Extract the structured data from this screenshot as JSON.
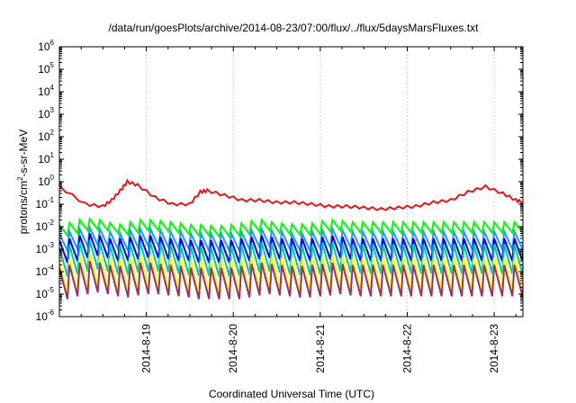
{
  "chart_data": {
    "type": "line",
    "title": "/data/run/goesPlots/archive/2014-08-23/07:00/flux/../flux/5daysMarsFluxes.txt",
    "xlabel": "Coordinated Universal Time (UTC)",
    "ylabel": {
      "base": "protons/cm",
      "exp": "2",
      "rest": "-s-sr-MeV"
    },
    "ylog": true,
    "ylim_exponents": [
      -6,
      6
    ],
    "y_ticks": [
      {
        "base": "10",
        "exp": "6"
      },
      {
        "base": "10",
        "exp": "5"
      },
      {
        "base": "10",
        "exp": "4"
      },
      {
        "base": "10",
        "exp": "3"
      },
      {
        "base": "10",
        "exp": "2"
      },
      {
        "base": "10",
        "exp": "1"
      },
      {
        "base": "10",
        "exp": "0"
      },
      {
        "base": "10",
        "exp": "-1"
      },
      {
        "base": "10",
        "exp": "-2"
      },
      {
        "base": "10",
        "exp": "-3"
      },
      {
        "base": "10",
        "exp": "-4"
      },
      {
        "base": "10",
        "exp": "-5"
      },
      {
        "base": "10",
        "exp": "-6"
      }
    ],
    "x_range_days": [
      "2014-08-18",
      "2014-08-23"
    ],
    "x_ticks": [
      "2014-8-19",
      "2014-8-20",
      "2014-8-21",
      "2014-8-22",
      "2014-8-23"
    ],
    "grid": "x-only",
    "series": [
      {
        "color": "#e41a1c",
        "x": [
          18.0,
          18.3,
          18.5,
          18.6,
          18.7,
          18.78,
          18.9,
          19.1,
          19.3,
          19.5,
          19.62,
          19.7,
          19.9,
          20.1,
          20.3,
          20.5,
          20.7,
          20.9,
          21.1,
          21.3,
          21.5,
          21.7,
          21.9,
          22.1,
          22.3,
          22.5,
          22.7,
          22.9,
          23.1,
          23.25,
          23.33
        ],
        "values": [
          0.6,
          0.1,
          0.08,
          0.15,
          0.4,
          1.0,
          0.7,
          0.2,
          0.1,
          0.1,
          0.35,
          0.4,
          0.25,
          0.15,
          0.15,
          0.12,
          0.12,
          0.1,
          0.08,
          0.08,
          0.07,
          0.06,
          0.07,
          0.08,
          0.12,
          0.15,
          0.35,
          0.6,
          0.3,
          0.15,
          0.12
        ]
      },
      {
        "color": "#00ff00",
        "level": [
          0.012,
          0.015,
          0.02,
          0.022,
          0.02,
          0.015,
          0.013,
          0.016,
          0.02,
          0.02,
          0.018,
          0.016,
          0.014,
          0.012,
          0.012,
          0.011,
          0.011,
          0.012,
          0.014,
          0.018,
          0.02,
          0.016,
          0.014,
          0.013,
          0.013,
          0.014,
          0.018,
          0.02,
          0.018,
          0.016,
          0.016,
          0.016,
          0.016,
          0.016,
          0.016,
          0.016,
          0.016,
          0.016,
          0.016,
          0.016,
          0.016,
          0.016,
          0.016,
          0.016,
          0.016,
          0.016,
          0.016,
          0.016,
          0.016,
          0.016,
          0.016,
          0.016,
          0.016,
          0.016,
          0.016,
          0.016,
          0.016,
          0.016,
          0.016,
          0.016,
          0.016
        ],
        "drop": 3
      },
      {
        "color": "#1a9bff",
        "level": [
          0.005,
          0.006,
          0.008,
          0.009,
          0.008,
          0.006,
          0.005,
          0.007,
          0.008,
          0.008,
          0.007,
          0.006,
          0.006,
          0.005,
          0.005,
          0.005,
          0.005,
          0.005,
          0.006,
          0.007,
          0.008,
          0.007,
          0.006,
          0.005,
          0.005,
          0.006,
          0.007,
          0.008,
          0.007,
          0.006,
          0.006,
          0.006,
          0.006,
          0.006,
          0.006,
          0.006,
          0.006,
          0.006,
          0.006,
          0.006,
          0.006,
          0.006,
          0.006,
          0.006,
          0.006,
          0.006,
          0.006,
          0.006,
          0.006,
          0.006,
          0.006,
          0.006,
          0.006,
          0.006,
          0.006,
          0.006,
          0.006,
          0.006,
          0.006,
          0.006,
          0.006
        ],
        "drop": 6
      },
      {
        "color": "#0000ff",
        "level": [
          0.0025,
          0.003,
          0.004,
          0.005,
          0.004,
          0.003,
          0.003,
          0.0035,
          0.004,
          0.004,
          0.0035,
          0.003,
          0.003,
          0.0025,
          0.0025,
          0.0025,
          0.0025,
          0.0025,
          0.003,
          0.0035,
          0.004,
          0.0035,
          0.003,
          0.003,
          0.003,
          0.003,
          0.0035,
          0.004,
          0.0035,
          0.003,
          0.003,
          0.003,
          0.003,
          0.003,
          0.003,
          0.003,
          0.003,
          0.003,
          0.003,
          0.003,
          0.003,
          0.003,
          0.003,
          0.003,
          0.003,
          0.003,
          0.003,
          0.003,
          0.003,
          0.003,
          0.003,
          0.003,
          0.003,
          0.003,
          0.003,
          0.003,
          0.003,
          0.003,
          0.003,
          0.003,
          0.003
        ],
        "drop": 10
      },
      {
        "color": "#00c8a0",
        "level": [
          0.0012,
          0.0015,
          0.002,
          0.0025,
          0.002,
          0.0015,
          0.0014,
          0.0018,
          0.002,
          0.002,
          0.0018,
          0.0016,
          0.0014,
          0.0013,
          0.0013,
          0.0012,
          0.0012,
          0.0013,
          0.0015,
          0.0018,
          0.002,
          0.0018,
          0.0015,
          0.0014,
          0.0014,
          0.0015,
          0.0018,
          0.002,
          0.0018,
          0.0016,
          0.0016,
          0.0016,
          0.0016,
          0.0016,
          0.0016,
          0.0016,
          0.0016,
          0.0016,
          0.0016,
          0.0016,
          0.0016,
          0.0016,
          0.0016,
          0.0016,
          0.0016,
          0.0016,
          0.0016,
          0.0016,
          0.0016,
          0.0016,
          0.0016,
          0.0016,
          0.0016,
          0.0016,
          0.0016,
          0.0016,
          0.0016,
          0.0016,
          0.0016,
          0.0016,
          0.0016
        ],
        "drop": 20
      },
      {
        "color": "#ffff00",
        "level": [
          0.0003,
          0.00035,
          0.0005,
          0.0006,
          0.0005,
          0.0004,
          0.00035,
          0.00045,
          0.0005,
          0.0005,
          0.00045,
          0.0004,
          0.00035,
          0.0003,
          0.0003,
          0.0003,
          0.0003,
          0.0003,
          0.00035,
          0.00045,
          0.0005,
          0.00045,
          0.0004,
          0.00035,
          0.00035,
          0.0004,
          0.00045,
          0.0005,
          0.00045,
          0.0004,
          0.0004,
          0.0004,
          0.0004,
          0.0004,
          0.0004,
          0.0004,
          0.0004,
          0.0004,
          0.0004,
          0.0004,
          0.0004,
          0.0004,
          0.0004,
          0.0004,
          0.0004,
          0.0004,
          0.0004,
          0.0004,
          0.0004,
          0.0004,
          0.0004,
          0.0004,
          0.0004,
          0.0004,
          0.0004,
          0.0004,
          0.0004,
          0.0004,
          0.0004,
          0.0004,
          0.0004
        ],
        "drop": 30
      },
      {
        "color": "#993366",
        "level": [
          0.00015,
          0.0002,
          0.00025,
          0.0003,
          0.00025,
          0.0002,
          0.00018,
          0.00022,
          0.00025,
          0.00025,
          0.00022,
          0.0002,
          0.00018,
          0.00015,
          0.00015,
          0.00015,
          0.00015,
          0.00015,
          0.00018,
          0.00022,
          0.00025,
          0.00022,
          0.0002,
          0.00018,
          0.00018,
          0.0002,
          0.00022,
          0.00025,
          0.00022,
          0.0002,
          0.0002,
          0.0002,
          0.0002,
          0.0002,
          0.0002,
          0.0002,
          0.0002,
          0.0002,
          0.0002,
          0.0002,
          0.0002,
          0.0002,
          0.0002,
          0.0002,
          0.0002,
          0.0002,
          0.0002,
          0.0002,
          0.0002,
          0.0002,
          0.0002,
          0.0002,
          0.0002,
          0.0002,
          0.0002,
          0.0002,
          0.0002,
          0.0002,
          0.0002,
          0.0002,
          0.0002
        ],
        "drop": 25
      }
    ]
  }
}
